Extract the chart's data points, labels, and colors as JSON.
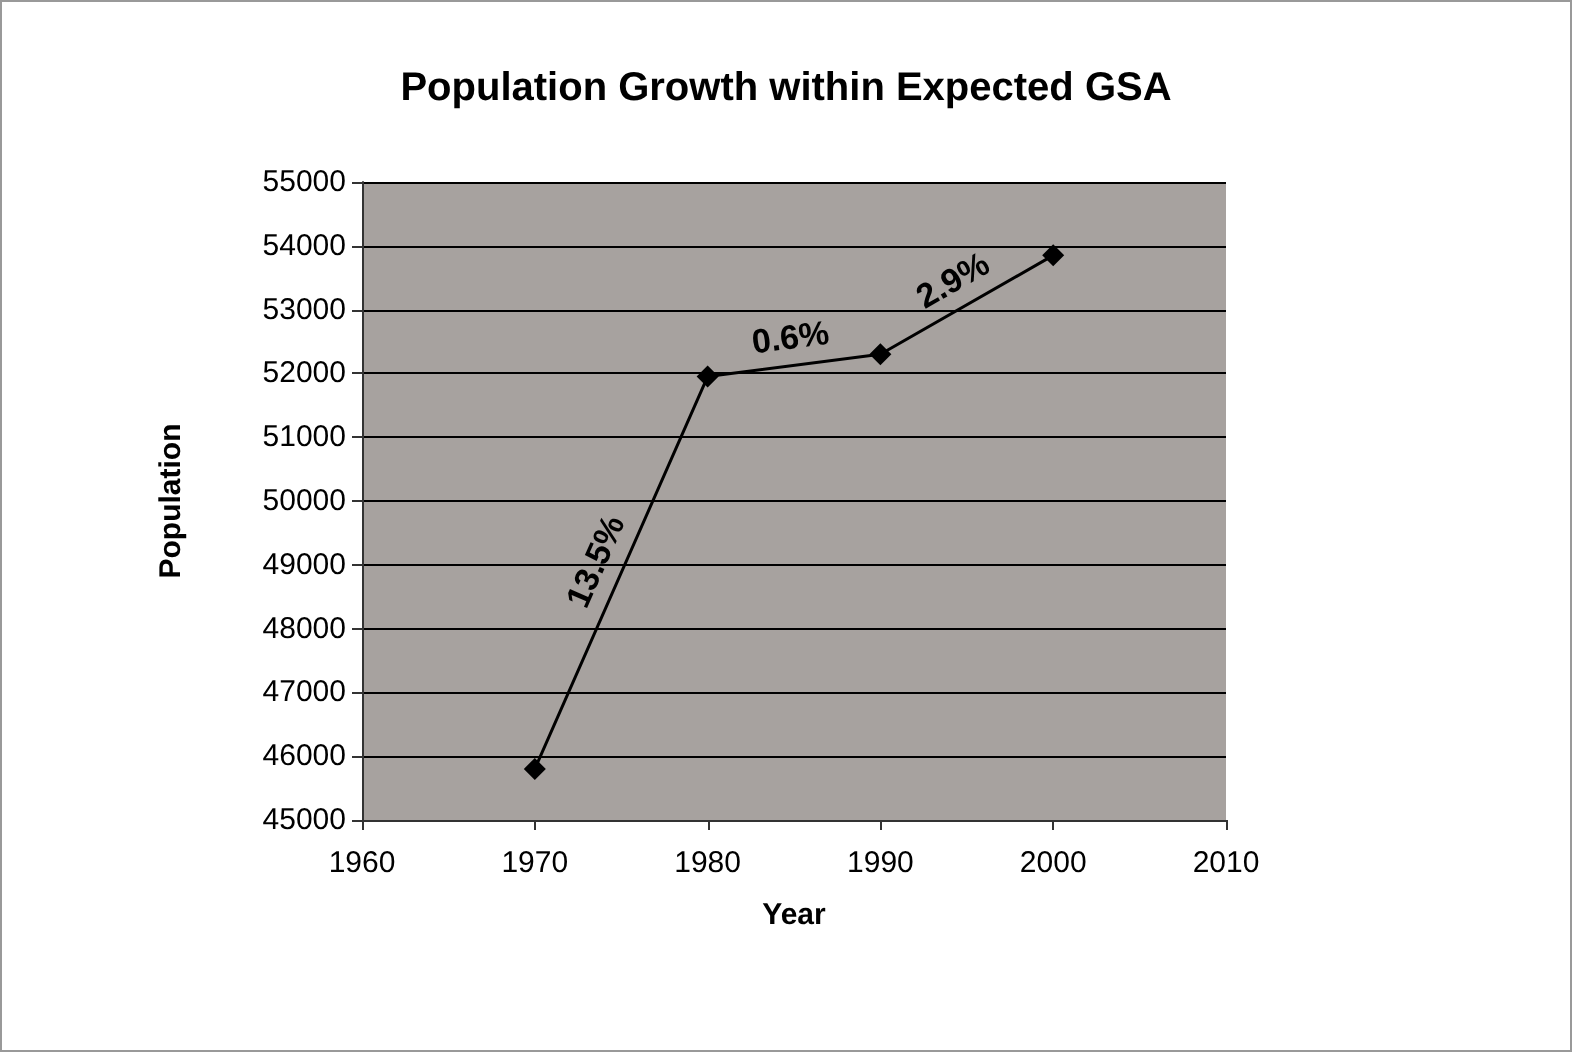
{
  "chart_data": {
    "type": "line",
    "title": "Population Growth within Expected GSA",
    "xlabel": "Year",
    "ylabel": "Population",
    "x": [
      1970,
      1980,
      1990,
      2000
    ],
    "series": [
      {
        "color": "#000000",
        "values": [
          45800,
          51950,
          52300,
          53850
        ]
      }
    ],
    "xlim": [
      1960,
      2010
    ],
    "xticks": [
      1960,
      1970,
      1980,
      1990,
      2000,
      2010
    ],
    "ylim": [
      45000,
      55000
    ],
    "yticks": [
      45000,
      46000,
      47000,
      48000,
      49000,
      50000,
      51000,
      52000,
      53000,
      54000,
      55000
    ],
    "grid": "y",
    "marker": "diamond",
    "line_style": "solid",
    "annotations": [
      {
        "text": "13.5%",
        "x": 1975,
        "y": 48875
      },
      {
        "text": "0.6%",
        "x": 1985,
        "y": 52125
      },
      {
        "text": "2.9%",
        "x": 1995,
        "y": 53075
      }
    ]
  }
}
